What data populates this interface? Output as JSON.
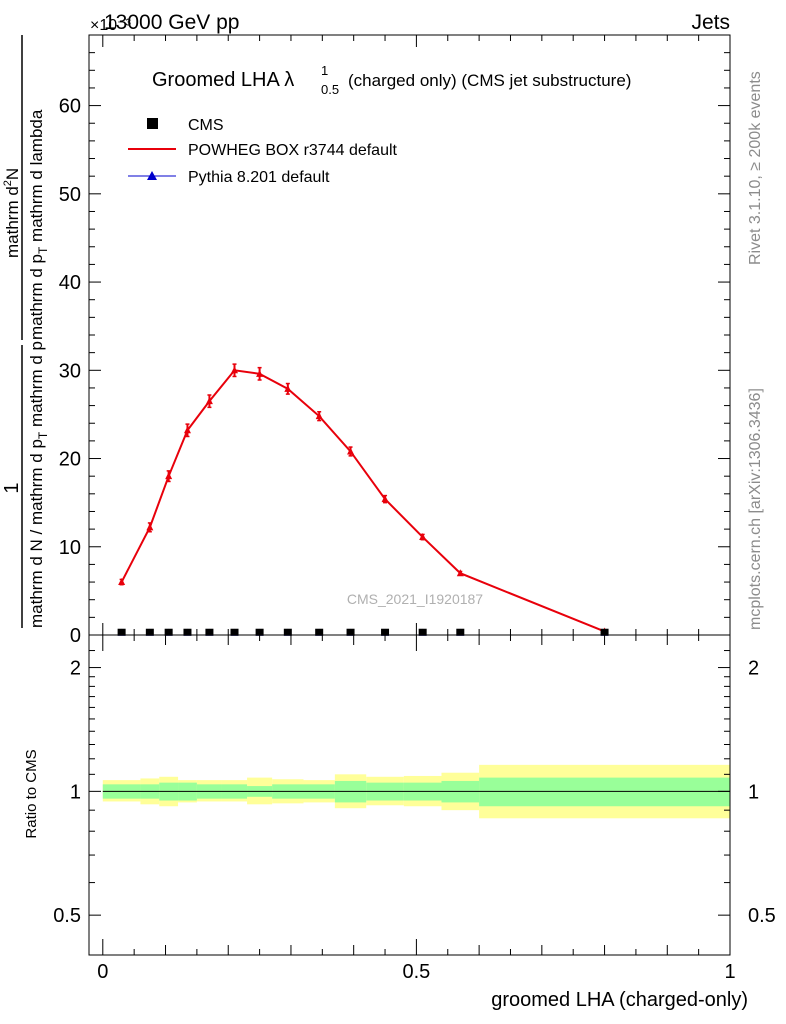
{
  "header": {
    "energy": "13000 GeV pp",
    "process": "Jets",
    "exponent": "×10⁻³"
  },
  "side_labels": {
    "rivet": "Rivet 3.1.10, ≥ 200k events",
    "mcplots": "mcplots.cern.ch [arXiv:1306.3436]"
  },
  "watermark": "CMS_2021_I1920187",
  "chart_data": [
    {
      "type": "line",
      "title": "Groomed LHA λ",
      "title_sup": "1",
      "title_sub": "0.5",
      "title_suffix": " (charged only) (CMS jet substructure)",
      "ylabel_numerator": "1",
      "ylabel_denominator": "mathrm d N / mathrm d p",
      "ylabel_denominator_sub": "T",
      "ylabel_denominator_tail": " mathrm d p",
      "ylabel_frac2_num": "mathrm d",
      "ylabel_frac2_num_sup": "2",
      "ylabel_frac2_num_tail": "N",
      "ylabel_frac2_den": "mathrm d p",
      "ylabel_frac2_den_sub": "T",
      "ylabel_frac2_den_tail": " mathrm d lambda",
      "ylim": [
        0,
        68
      ],
      "xlim": [
        -0.022,
        1.0
      ],
      "yticks": [
        0,
        10,
        20,
        30,
        40,
        50,
        60
      ],
      "legend_position": "top-left",
      "legend": [
        {
          "label": "CMS",
          "marker": "square",
          "color": "#000000"
        },
        {
          "label": "POWHEG BOX r3744 default",
          "marker": "line",
          "color": "#e8000b"
        },
        {
          "label": "Pythia 8.201 default",
          "marker": "triangle",
          "color": "#0000cc"
        }
      ],
      "series": [
        {
          "name": "POWHEG BOX r3744 default",
          "color": "#e8000b",
          "x": [
            0.03,
            0.075,
            0.105,
            0.135,
            0.17,
            0.21,
            0.25,
            0.295,
            0.345,
            0.395,
            0.45,
            0.51,
            0.57,
            0.8
          ],
          "values": [
            6.0,
            12.2,
            18.0,
            23.2,
            26.5,
            30.0,
            29.6,
            27.9,
            24.8,
            20.8,
            15.4,
            11.1,
            7.0,
            0.4
          ],
          "errors": [
            0.3,
            0.5,
            0.6,
            0.7,
            0.7,
            0.7,
            0.7,
            0.6,
            0.5,
            0.5,
            0.4,
            0.3,
            0.2,
            0.1
          ]
        },
        {
          "name": "CMS",
          "color": "#000000",
          "x": [
            0.03,
            0.075,
            0.105,
            0.135,
            0.17,
            0.21,
            0.25,
            0.295,
            0.345,
            0.395,
            0.45,
            0.51,
            0.57,
            0.8
          ],
          "values": [
            0.03,
            0.03,
            0.03,
            0.03,
            0.03,
            0.03,
            0.03,
            0.03,
            0.03,
            0.03,
            0.03,
            0.03,
            0.03,
            0.03
          ]
        },
        {
          "name": "Pythia 8.201 default",
          "color": "#0000cc",
          "x": [
            0.03,
            0.075,
            0.105,
            0.135,
            0.17,
            0.21,
            0.25,
            0.295,
            0.345,
            0.395,
            0.45,
            0.51,
            0.57,
            0.8
          ],
          "values": [
            0.03,
            0.03,
            0.03,
            0.03,
            0.03,
            0.03,
            0.03,
            0.03,
            0.03,
            0.03,
            0.03,
            0.03,
            0.03,
            0.03
          ]
        }
      ]
    },
    {
      "type": "area",
      "ylabel": "Ratio to CMS",
      "xlabel": "groomed LHA (charged-only)",
      "xlim": [
        -0.022,
        1.0
      ],
      "ylim": [
        0.4,
        2.4
      ],
      "log_y": true,
      "yticks": [
        0.5,
        1,
        2
      ],
      "ytick_labels": [
        "0.5",
        "1",
        "2"
      ],
      "xticks": [
        0,
        0.5,
        1
      ],
      "xtick_labels": [
        "0",
        "0.5",
        "1"
      ],
      "bins": [
        0.0,
        0.06,
        0.09,
        0.12,
        0.15,
        0.19,
        0.23,
        0.27,
        0.32,
        0.37,
        0.42,
        0.48,
        0.54,
        0.6,
        1.0
      ],
      "inner_band": {
        "color": "#99ff99",
        "lo": [
          0.96,
          0.96,
          0.95,
          0.95,
          0.96,
          0.96,
          0.97,
          0.96,
          0.96,
          0.94,
          0.95,
          0.95,
          0.94,
          0.92
        ],
        "hi": [
          1.04,
          1.04,
          1.05,
          1.05,
          1.04,
          1.04,
          1.03,
          1.04,
          1.04,
          1.06,
          1.05,
          1.05,
          1.06,
          1.08
        ]
      },
      "outer_band": {
        "color": "#ffff99",
        "lo": [
          0.945,
          0.93,
          0.92,
          0.94,
          0.945,
          0.945,
          0.93,
          0.935,
          0.94,
          0.91,
          0.925,
          0.92,
          0.9,
          0.86
        ],
        "hi": [
          1.065,
          1.075,
          1.085,
          1.065,
          1.065,
          1.065,
          1.08,
          1.07,
          1.065,
          1.1,
          1.085,
          1.09,
          1.11,
          1.16
        ]
      },
      "reference": 1
    }
  ]
}
